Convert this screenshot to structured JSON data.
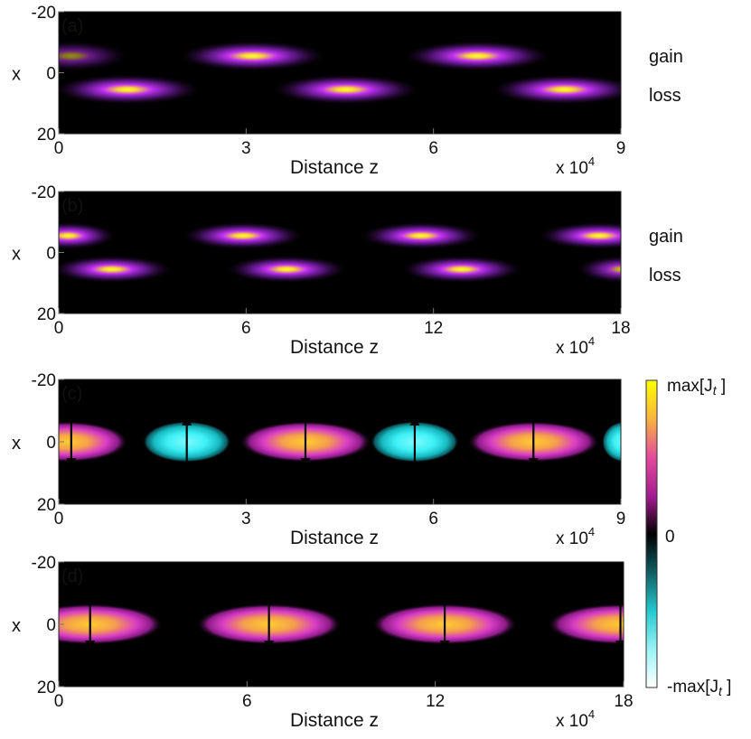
{
  "chart_data": [
    {
      "type": "heatmap",
      "panel_label": "(a)",
      "ylabel": "x",
      "xlabel": "Distance z",
      "x_exponent_label": "x 10",
      "x_exponent_power": "4",
      "x_ticks": [
        "0",
        "3",
        "6",
        "9"
      ],
      "y_ticks": [
        "-20",
        "0",
        "20"
      ],
      "xlim": [
        0,
        9
      ],
      "ylim": [
        -20,
        20
      ],
      "side_labels": [
        "gain",
        "loss"
      ],
      "colormap": "black-purple-yellow (intensity)",
      "blobs": [
        {
          "x": 0.2,
          "y": -5.5,
          "sx": 0.9,
          "sy": 2.2,
          "a": 0.55
        },
        {
          "x": 3.1,
          "y": -5.5,
          "sx": 1.15,
          "sy": 2.2,
          "a": 1.0
        },
        {
          "x": 6.7,
          "y": -5.5,
          "sx": 1.15,
          "sy": 2.2,
          "a": 1.0
        },
        {
          "x": 1.1,
          "y": 5.5,
          "sx": 1.15,
          "sy": 2.2,
          "a": 1.0
        },
        {
          "x": 4.6,
          "y": 5.5,
          "sx": 1.15,
          "sy": 2.2,
          "a": 1.0
        },
        {
          "x": 8.1,
          "y": 5.5,
          "sx": 1.15,
          "sy": 2.2,
          "a": 1.0
        }
      ]
    },
    {
      "type": "heatmap",
      "panel_label": "(b)",
      "ylabel": "x",
      "xlabel": "Distance z",
      "x_exponent_label": "x 10",
      "x_exponent_power": "4",
      "x_ticks": [
        "0",
        "6",
        "12",
        "18"
      ],
      "y_ticks": [
        "-20",
        "0",
        "20"
      ],
      "xlim": [
        0,
        18
      ],
      "ylim": [
        -20,
        20
      ],
      "side_labels": [
        "gain",
        "loss"
      ],
      "colormap": "black-purple-yellow (intensity)",
      "blobs": [
        {
          "x": 0.3,
          "y": -5.5,
          "sx": 1.5,
          "sy": 2.0,
          "a": 1.0
        },
        {
          "x": 5.9,
          "y": -5.5,
          "sx": 1.9,
          "sy": 2.0,
          "a": 1.0
        },
        {
          "x": 11.6,
          "y": -5.5,
          "sx": 1.9,
          "sy": 2.0,
          "a": 1.0
        },
        {
          "x": 17.3,
          "y": -5.5,
          "sx": 1.9,
          "sy": 2.0,
          "a": 1.0
        },
        {
          "x": 1.7,
          "y": 5.5,
          "sx": 1.9,
          "sy": 2.0,
          "a": 1.0
        },
        {
          "x": 7.3,
          "y": 5.5,
          "sx": 1.9,
          "sy": 2.0,
          "a": 1.0
        },
        {
          "x": 12.9,
          "y": 5.5,
          "sx": 1.9,
          "sy": 2.0,
          "a": 1.0
        },
        {
          "x": 18.1,
          "y": 5.5,
          "sx": 1.5,
          "sy": 2.0,
          "a": 0.8
        }
      ]
    },
    {
      "type": "heatmap",
      "panel_label": "(c)",
      "ylabel": "x",
      "xlabel": "Distance z",
      "x_exponent_label": "x 10",
      "x_exponent_power": "4",
      "x_ticks": [
        "0",
        "3",
        "6",
        "9"
      ],
      "y_ticks": [
        "-20",
        "0",
        "20"
      ],
      "xlim": [
        0,
        9
      ],
      "ylim": [
        -20,
        20
      ],
      "colormap": "signed current Jt (cyan negative, purple-yellow positive)",
      "blobs": [
        {
          "x": 0.15,
          "y": 0,
          "hw": 0.95,
          "hh": 6.5,
          "sign": 1
        },
        {
          "x": 2.05,
          "y": 0,
          "hw": 0.7,
          "hh": 6.5,
          "sign": -1
        },
        {
          "x": 3.95,
          "y": 0,
          "hw": 1.05,
          "hh": 6.5,
          "sign": 1
        },
        {
          "x": 5.7,
          "y": 0,
          "hw": 0.7,
          "hh": 6.5,
          "sign": -1
        },
        {
          "x": 7.6,
          "y": 0,
          "hw": 1.05,
          "hh": 6.5,
          "sign": 1
        },
        {
          "x": 9.05,
          "y": 0,
          "hw": 0.35,
          "hh": 6.5,
          "sign": -1
        }
      ],
      "arrows": [
        {
          "x": 0.2,
          "dir": "down"
        },
        {
          "x": 2.05,
          "dir": "up"
        },
        {
          "x": 3.95,
          "dir": "down"
        },
        {
          "x": 5.7,
          "dir": "up"
        },
        {
          "x": 7.6,
          "dir": "down"
        }
      ]
    },
    {
      "type": "heatmap",
      "panel_label": "(d)",
      "ylabel": "x",
      "xlabel": "Distance z",
      "x_exponent_label": "x 10",
      "x_exponent_power": "4",
      "x_ticks": [
        "0",
        "6",
        "12",
        "18"
      ],
      "y_ticks": [
        "-20",
        "0",
        "20"
      ],
      "xlim": [
        0,
        18
      ],
      "ylim": [
        -20,
        20
      ],
      "colormap": "signed current Jt (cyan negative, purple-yellow positive)",
      "blobs": [
        {
          "x": 1.0,
          "y": 0,
          "hw": 2.3,
          "hh": 6.5,
          "sign": 1
        },
        {
          "x": 6.7,
          "y": 0,
          "hw": 2.3,
          "hh": 6.5,
          "sign": 1
        },
        {
          "x": 12.3,
          "y": 0,
          "hw": 2.3,
          "hh": 6.5,
          "sign": 1
        },
        {
          "x": 17.9,
          "y": 0,
          "hw": 2.3,
          "hh": 6.5,
          "sign": 1
        }
      ],
      "arrows": [
        {
          "x": 1.0,
          "dir": "down"
        },
        {
          "x": 6.7,
          "dir": "down"
        },
        {
          "x": 12.3,
          "dir": "down"
        },
        {
          "x": 17.9,
          "dir": "down"
        }
      ]
    }
  ],
  "colorbar": {
    "top_label": "max[J",
    "bottom_label": "-max[J",
    "subscript": "t",
    "suffix": " ]",
    "mid_label": "0"
  }
}
